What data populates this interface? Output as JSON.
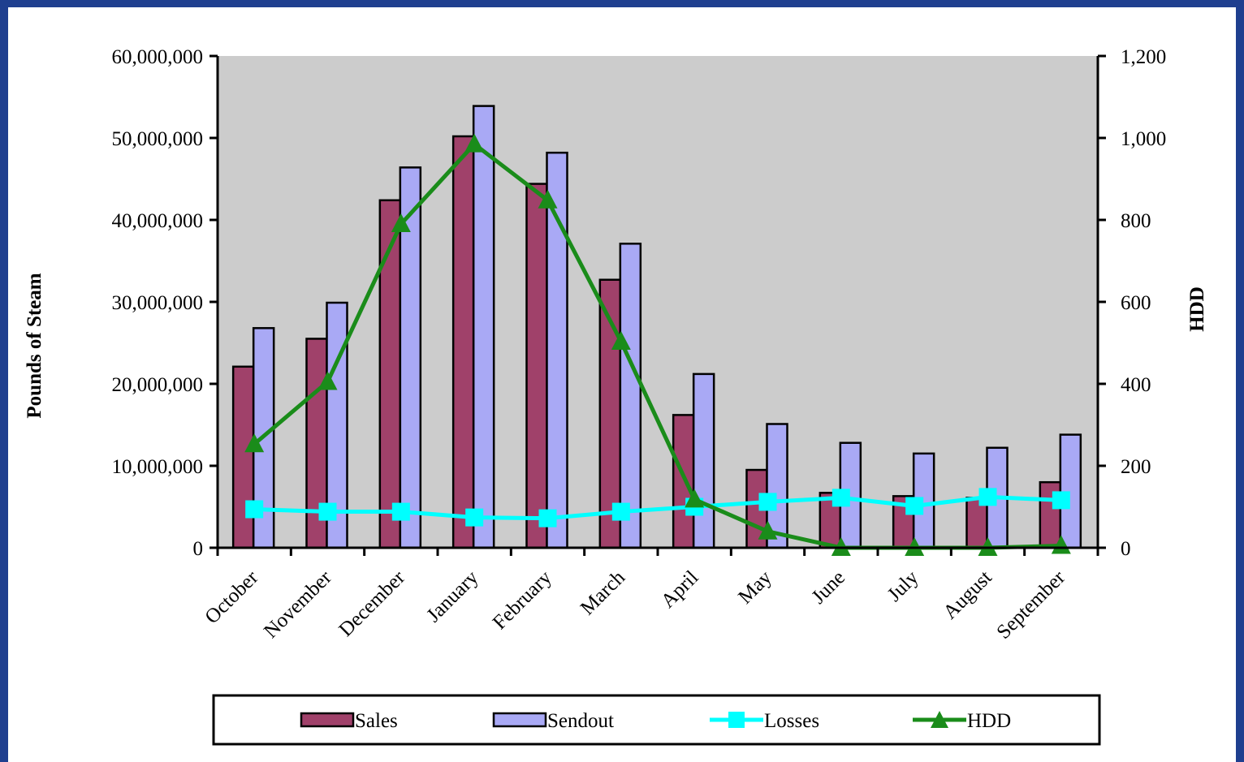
{
  "chart_data": {
    "type": "bar",
    "categories": [
      "October",
      "November",
      "December",
      "January",
      "February",
      "March",
      "April",
      "May",
      "June",
      "July",
      "August",
      "September"
    ],
    "series": [
      {
        "name": "Sales",
        "type": "bar",
        "axis": "left",
        "color": "#a0416a",
        "values": [
          22100000,
          25500000,
          42400000,
          50200000,
          44400000,
          32700000,
          16200000,
          9500000,
          6700000,
          6300000,
          6100000,
          8000000
        ]
      },
      {
        "name": "Sendout",
        "type": "bar",
        "axis": "left",
        "color": "#a9a9f5",
        "values": [
          26800000,
          29900000,
          46400000,
          53900000,
          48200000,
          37100000,
          21200000,
          15100000,
          12800000,
          11500000,
          12200000,
          13800000
        ]
      },
      {
        "name": "Losses",
        "type": "line",
        "axis": "left",
        "color": "#00ffff",
        "marker": "square",
        "values": [
          4700000,
          4400000,
          4400000,
          3700000,
          3600000,
          4400000,
          5000000,
          5600000,
          6100000,
          5100000,
          6200000,
          5800000
        ]
      },
      {
        "name": "HDD",
        "type": "line",
        "axis": "right",
        "color": "#1a8c1a",
        "marker": "triangle",
        "values": [
          253,
          405,
          790,
          985,
          848,
          503,
          118,
          40,
          0,
          0,
          0,
          5
        ]
      }
    ],
    "ylabel": "Pounds of Steam",
    "y2label": "HDD",
    "ylim": [
      0,
      60000000
    ],
    "y2lim": [
      0,
      1200
    ],
    "yticks": [
      "0",
      "10,000,000",
      "20,000,000",
      "30,000,000",
      "40,000,000",
      "50,000,000",
      "60,000,000"
    ],
    "y2ticks": [
      "0",
      "200",
      "400",
      "600",
      "800",
      "1,000",
      "1,200"
    ],
    "plot_background": "#cccccc",
    "grid": false,
    "legend_position": "bottom"
  }
}
